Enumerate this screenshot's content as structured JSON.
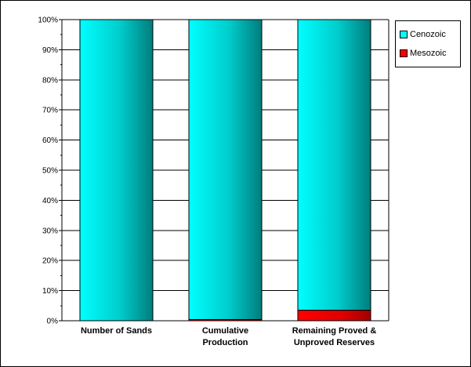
{
  "chart_data": {
    "type": "bar",
    "stacked": true,
    "percent": true,
    "categories": [
      [
        "Number of Sands"
      ],
      [
        "Cumulative",
        "Production"
      ],
      [
        "Remaining Proved &",
        "Unproved Reserves"
      ]
    ],
    "series": [
      {
        "name": "Mesozoic",
        "color": "#ff0000",
        "values": [
          0,
          0.4,
          3.5
        ]
      },
      {
        "name": "Cenozoic",
        "color": "#00cccc",
        "values": [
          100,
          99.6,
          96.5
        ]
      }
    ],
    "ylim": [
      0,
      100
    ],
    "yticks": [
      "0%",
      "10%",
      "20%",
      "30%",
      "40%",
      "50%",
      "60%",
      "70%",
      "80%",
      "90%",
      "100%"
    ],
    "grid": true,
    "legend": "right"
  },
  "legend": {
    "items": [
      {
        "label": "Cenozoic",
        "color": "#00cccc"
      },
      {
        "label": "Mesozoic",
        "color": "#ff0000"
      }
    ]
  }
}
